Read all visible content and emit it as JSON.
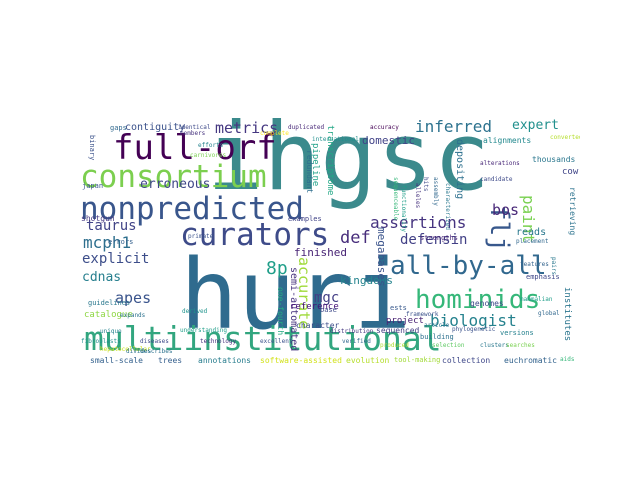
{
  "word_cloud": {
    "words": [
      {
        "text": "ihgsc",
        "color": "#3b8a8c"
      },
      {
        "text": "huri",
        "color": "#2f6b8e"
      },
      {
        "text": "multiinstitutional",
        "color": "#32a67f"
      },
      {
        "text": "full-orf",
        "color": "#440154"
      },
      {
        "text": "consortium",
        "color": "#7ccf4f"
      },
      {
        "text": "nonpredicted",
        "color": "#39568c"
      },
      {
        "text": "curators",
        "color": "#3e4b89"
      },
      {
        "text": "all-by-all",
        "color": "#31688e"
      },
      {
        "text": "hominids",
        "color": "#35b779"
      },
      {
        "text": "flj",
        "color": "#38588c"
      },
      {
        "text": "metrics",
        "color": "#453781"
      },
      {
        "text": "inferred",
        "color": "#2c728e"
      },
      {
        "text": "assertions",
        "color": "#463480"
      },
      {
        "text": "biologist",
        "color": "#26828e"
      },
      {
        "text": "erroneous",
        "color": "#3f4788"
      },
      {
        "text": "defensin",
        "color": "#424086"
      },
      {
        "text": "paint",
        "color": "#7ad151"
      },
      {
        "text": "expert",
        "color": "#21908d"
      },
      {
        "text": "mcph1",
        "color": "#2e6f8e"
      },
      {
        "text": "taurus",
        "color": "#414487"
      },
      {
        "text": "bos",
        "color": "#482878"
      },
      {
        "text": "def",
        "color": "#472d7b"
      },
      {
        "text": "apes",
        "color": "#3a548c"
      },
      {
        "text": "8p",
        "color": "#1f9e89"
      },
      {
        "text": "mgc",
        "color": "#433e85"
      },
      {
        "text": "accurate",
        "color": "#9fda3a"
      },
      {
        "text": "kingdoms",
        "color": "#25848e"
      },
      {
        "text": "explicit",
        "color": "#3d4e8a"
      },
      {
        "text": "cdnas",
        "color": "#277f8e"
      },
      {
        "text": "contiguity",
        "color": "#3b528b"
      },
      {
        "text": "finished",
        "color": "#482475"
      },
      {
        "text": "megabases",
        "color": "#3a538b"
      },
      {
        "text": "domestic",
        "color": "#414287"
      },
      {
        "text": "reads",
        "color": "#2a788e"
      },
      {
        "text": "cow",
        "color": "#404588"
      },
      {
        "text": "thousands",
        "color": "#2a778e"
      },
      {
        "text": "depositing",
        "color": "#2d708e"
      },
      {
        "text": "pipeline",
        "color": "#1fa188"
      },
      {
        "text": "transcriptome",
        "color": "#22a785"
      },
      {
        "text": "alignments",
        "color": "#23898e"
      },
      {
        "text": "retrieving",
        "color": "#2c738e"
      },
      {
        "text": "project",
        "color": "#482173"
      },
      {
        "text": "genomes",
        "color": "#3e4989"
      },
      {
        "sx": "semi-automated",
        "text": "semi-automated",
        "color": "#46327e"
      },
      {
        "text": "one-fourth",
        "color": "#25ab82"
      },
      {
        "text": "reference",
        "color": "#440f76"
      },
      {
        "text": "catalogue",
        "color": "#8fd744"
      },
      {
        "text": "sequenced",
        "color": "#433d84"
      },
      {
        "text": "character",
        "color": "#3d4d8a"
      },
      {
        "text": "institutes",
        "color": "#2b758e"
      },
      {
        "text": "small-scale",
        "color": "#34618d"
      },
      {
        "text": "trees",
        "color": "#355f8d"
      },
      {
        "text": "annotations",
        "color": "#287d8e"
      },
      {
        "text": "software-assisted",
        "color": "#d2e21b"
      },
      {
        "text": "evolution",
        "color": "#b5de2b"
      },
      {
        "text": "tool-making",
        "color": "#a2da37"
      },
      {
        "text": "collection",
        "color": "#3f4889"
      },
      {
        "text": "euchromatic",
        "color": "#33638d"
      },
      {
        "text": "examples",
        "color": "#404387"
      },
      {
        "text": "shotgun",
        "color": "#453882"
      },
      {
        "text": "guidelines",
        "color": "#2a788e"
      },
      {
        "text": "building",
        "color": "#2d708e"
      },
      {
        "text": "versions",
        "color": "#26818e"
      },
      {
        "text": "strengths",
        "color": "#482677"
      },
      {
        "text": "base",
        "color": "#3e4a89"
      },
      {
        "text": "ests",
        "color": "#38588c"
      },
      {
        "text": "binary",
        "color": "#3b528b"
      },
      {
        "text": "japan",
        "color": "#39568c"
      },
      {
        "text": "gaps",
        "color": "#31688e"
      },
      {
        "text": "errors",
        "color": "#34618d"
      },
      {
        "text": "redundant",
        "color": "#2e6e8e"
      },
      {
        "text": "emphasis",
        "color": "#3f4788"
      },
      {
        "text": "derived",
        "color": "#1f948c"
      },
      {
        "text": "phylogenetic",
        "color": "#3b528b"
      },
      {
        "text": "article",
        "color": "#2c728e"
      },
      {
        "text": "global",
        "color": "#31688e"
      },
      {
        "text": "mammalian",
        "color": "#1f9e89"
      },
      {
        "text": "pairs",
        "color": "#2a788e"
      },
      {
        "text": "features",
        "color": "#33638d"
      },
      {
        "text": "members",
        "color": "#46327e"
      },
      {
        "text": "complete",
        "color": "#fde725"
      },
      {
        "text": "hepatocellular",
        "color": "#c8e020"
      },
      {
        "text": "produced",
        "color": "#addc30"
      },
      {
        "text": "selection",
        "color": "#5ec962"
      },
      {
        "text": "clusters",
        "color": "#2a788e"
      },
      {
        "text": "candidate",
        "color": "#3e4a89"
      },
      {
        "text": "distribution",
        "color": "#453781"
      },
      {
        "text": "characterized",
        "color": "#2a788e"
      },
      {
        "text": "assembly",
        "color": "#31688e"
      },
      {
        "text": "framework",
        "color": "#3b528b"
      },
      {
        "text": "accuracy",
        "color": "#440154"
      },
      {
        "text": "duplicated",
        "color": "#482878"
      },
      {
        "text": "international",
        "color": "#21908d"
      },
      {
        "text": "identical",
        "color": "#3e4989"
      },
      {
        "text": "efforts",
        "color": "#26828e"
      },
      {
        "text": "carnivores",
        "color": "#7ad151"
      },
      {
        "text": "understanding",
        "color": "#1f9e89"
      },
      {
        "text": "expands",
        "color": "#2c728e"
      },
      {
        "text": "technology",
        "color": "#46327e"
      },
      {
        "text": "verified",
        "color": "#31688e"
      },
      {
        "text": "excellent",
        "color": "#3b528b"
      },
      {
        "text": "converted",
        "color": "#b5de2b"
      },
      {
        "text": "unique",
        "color": "#26828e"
      },
      {
        "text": "fibroblasts",
        "color": "#21908d"
      },
      {
        "text": "diseases",
        "color": "#3e4989"
      },
      {
        "text": "divides",
        "color": "#2c728e"
      },
      {
        "text": "alterations",
        "color": "#482878"
      },
      {
        "text": "sequenceable",
        "color": "#35b779"
      },
      {
        "text": "functionality",
        "color": "#1f9e89"
      },
      {
        "text": "primate",
        "color": "#3b528b"
      },
      {
        "text": "searches",
        "color": "#7ad151"
      },
      {
        "text": "placement",
        "color": "#31688e"
      },
      {
        "text": "hits",
        "color": "#3e4989"
      },
      {
        "text": "alleles",
        "color": "#46327e"
      },
      {
        "text": "describes",
        "color": "#2c728e"
      },
      {
        "text": "aids",
        "color": "#35b779"
      }
    ]
  }
}
